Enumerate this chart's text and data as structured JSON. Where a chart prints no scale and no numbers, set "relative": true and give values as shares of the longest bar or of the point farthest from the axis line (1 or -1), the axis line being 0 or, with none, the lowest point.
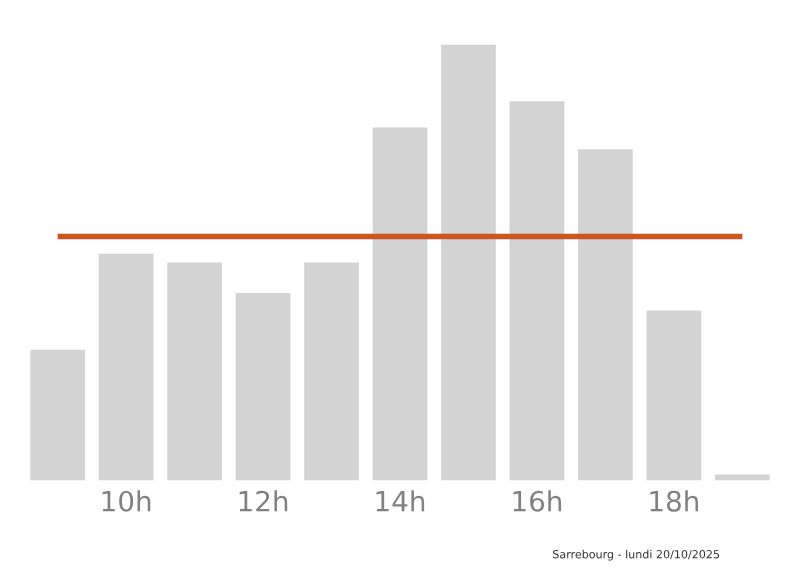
{
  "chart_data": {
    "type": "bar",
    "relative": true,
    "categories": [
      null,
      "10h",
      null,
      "12h",
      null,
      "14h",
      null,
      "16h",
      null,
      "18h",
      null
    ],
    "values": [
      0.3,
      0.52,
      0.5,
      0.43,
      0.5,
      0.81,
      1,
      0.87,
      0.76,
      0.39,
      0.014
    ],
    "color": "#d3d3d3",
    "ref_lines": [
      {
        "axis": "y",
        "value": 0.56,
        "color": "#cc5522"
      }
    ],
    "annotations": [
      "Sarrebourg - lundi 20/10/2025"
    ],
    "grid": false,
    "legend": false
  }
}
